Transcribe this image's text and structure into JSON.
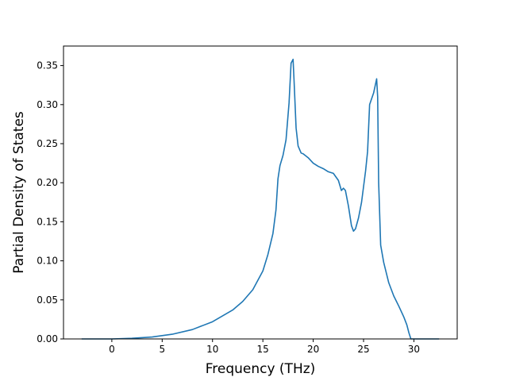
{
  "chart_data": {
    "type": "line",
    "title": "",
    "xlabel": "Frequency (THz)",
    "ylabel": "Partial Density of States",
    "xlim": [
      -4.8,
      34.3
    ],
    "ylim": [
      0.0,
      0.375
    ],
    "xticks": [
      0,
      5,
      10,
      15,
      20,
      25,
      30
    ],
    "xtick_labels": [
      "0",
      "5",
      "10",
      "15",
      "20",
      "25",
      "30"
    ],
    "yticks": [
      0.0,
      0.05,
      0.1,
      0.15,
      0.2,
      0.25,
      0.3,
      0.35
    ],
    "ytick_labels": [
      "0.00",
      "0.05",
      "0.10",
      "0.15",
      "0.20",
      "0.25",
      "0.30",
      "0.35"
    ],
    "grid": false,
    "line_color": "#1f77b4",
    "series": [
      {
        "x": [
          -3.0,
          0.0,
          2.0,
          4.0,
          6.0,
          8.0,
          10.0,
          12.0,
          13.0,
          14.0,
          15.0,
          15.5,
          16.0,
          16.3,
          16.5,
          16.7,
          17.0,
          17.3,
          17.6,
          17.8,
          18.0,
          18.1,
          18.3,
          18.5,
          18.8,
          19.0,
          19.5,
          20.0,
          20.5,
          21.0,
          21.5,
          22.0,
          22.5,
          22.8,
          23.0,
          23.2,
          23.5,
          23.8,
          24.0,
          24.2,
          24.5,
          24.8,
          25.2,
          25.4,
          25.6,
          26.0,
          26.3,
          26.4,
          26.5,
          26.7,
          27.0,
          27.5,
          28.0,
          28.5,
          29.0,
          29.3,
          29.5,
          29.7,
          30.0,
          31.0,
          32.5
        ],
        "y": [
          0.0,
          0.0,
          0.0008,
          0.0025,
          0.006,
          0.012,
          0.022,
          0.037,
          0.048,
          0.063,
          0.087,
          0.108,
          0.135,
          0.165,
          0.205,
          0.222,
          0.235,
          0.255,
          0.302,
          0.353,
          0.358,
          0.33,
          0.27,
          0.247,
          0.238,
          0.237,
          0.232,
          0.225,
          0.221,
          0.218,
          0.214,
          0.212,
          0.203,
          0.19,
          0.193,
          0.19,
          0.17,
          0.145,
          0.138,
          0.141,
          0.155,
          0.175,
          0.215,
          0.24,
          0.3,
          0.315,
          0.333,
          0.31,
          0.2,
          0.12,
          0.098,
          0.072,
          0.055,
          0.042,
          0.028,
          0.018,
          0.008,
          0.0,
          0.0,
          0.0,
          0.0
        ]
      }
    ]
  }
}
